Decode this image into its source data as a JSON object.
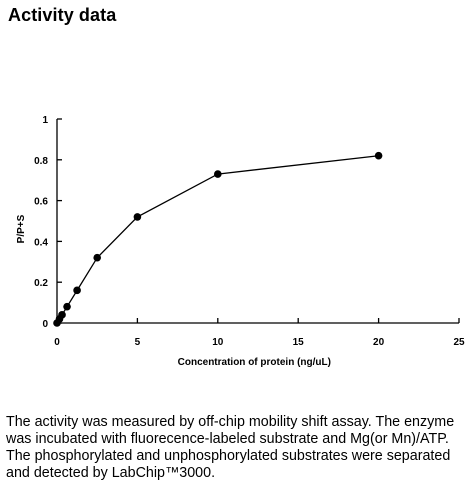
{
  "page": {
    "title": "Activity data",
    "description": "The activity was measured by off-chip mobility shift assay. The enzyme was incubated with fluorecence-labeled  substrate and Mg(or Mn)/ATP. The phosphorylated and unphosphorylated substrates were separated and detected by LabChip™3000."
  },
  "chart_data": {
    "type": "line",
    "title": "",
    "xlabel": "Concentration of protein (ng/uL)",
    "ylabel": "P/P+S",
    "xlim": [
      0,
      25
    ],
    "ylim": [
      0,
      1
    ],
    "x_ticks": [
      0,
      5,
      10,
      15,
      20,
      25
    ],
    "y_ticks": [
      0,
      0.2,
      0.4,
      0.6,
      0.8,
      1
    ],
    "y_tick_labels": [
      "0",
      "0.2",
      "0.4",
      "0.6",
      "0.8",
      "1"
    ],
    "grid": false,
    "legend": "none",
    "colors": {
      "line": "#000000",
      "marker": "#000000"
    },
    "series": [
      {
        "x": [
          0,
          0.156,
          0.313,
          0.625,
          1.25,
          2.5,
          5,
          10,
          20
        ],
        "y": [
          0.0,
          0.02,
          0.04,
          0.08,
          0.16,
          0.32,
          0.52,
          0.73,
          0.82
        ]
      }
    ]
  }
}
